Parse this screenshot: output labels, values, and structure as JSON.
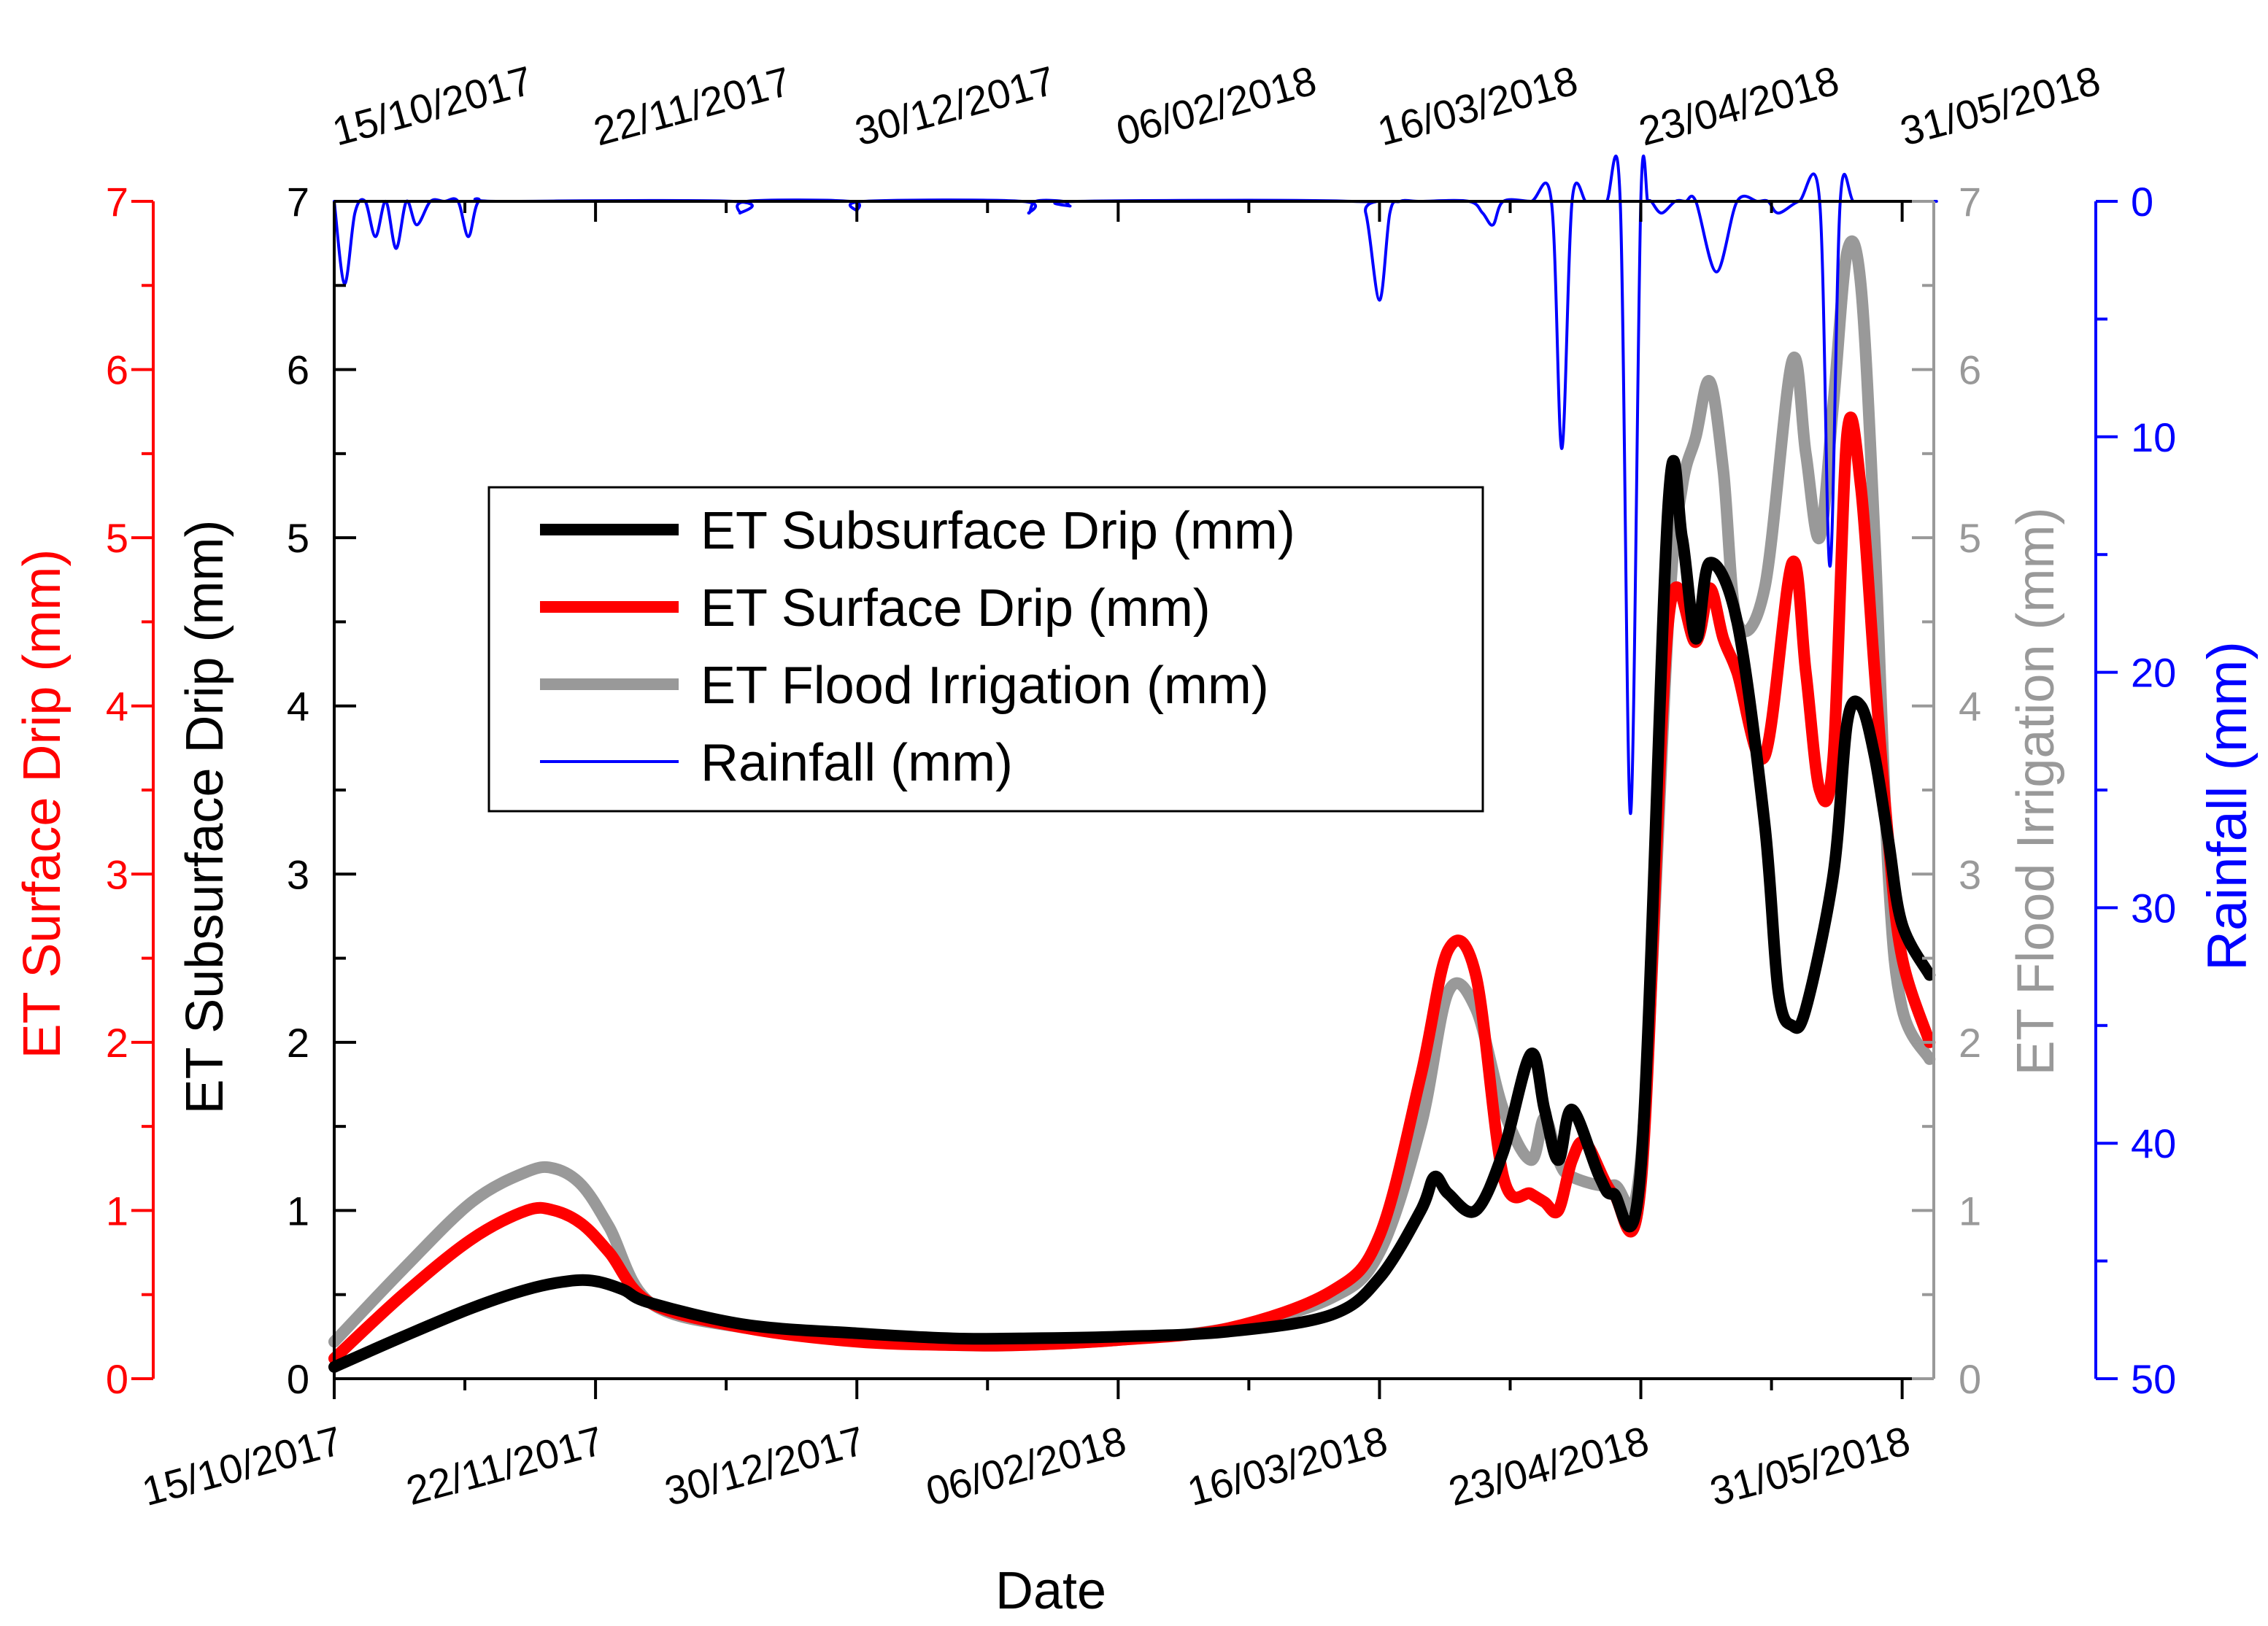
{
  "chart_data": {
    "type": "line",
    "xlabel": "Date",
    "x_tick_labels": [
      "15/10/2017",
      "22/11/2017",
      "30/12/2017",
      "06/02/2018",
      "16/03/2018",
      "23/04/2018",
      "31/05/2018"
    ],
    "x_tick_days": [
      0,
      38,
      76,
      114,
      152,
      190,
      228
    ],
    "x_range_days": [
      0,
      233
    ],
    "y_ticks_0_7": [
      "0",
      "1",
      "2",
      "3",
      "4",
      "5",
      "6",
      "7"
    ],
    "rain_ticks": [
      "0",
      "10",
      "20",
      "30",
      "40",
      "50"
    ],
    "axes": {
      "surface_drip": {
        "label": "ET Surface Drip (mm)",
        "range": [
          0,
          7
        ],
        "side": "left-outer",
        "color": "#ff0000"
      },
      "subsurface_drip": {
        "label": "ET Subsurface Drip (mm)",
        "range": [
          0,
          7
        ],
        "side": "left-inner",
        "color": "#000000"
      },
      "flood_irrigation": {
        "label": "ET Flood Irrigation (mm)",
        "range": [
          0,
          7
        ],
        "side": "right-inner",
        "color": "#999999"
      },
      "rainfall": {
        "label": "Rainfall (mm)",
        "range": [
          0,
          50
        ],
        "side": "right-outer",
        "inverted": true,
        "color": "#0000ff"
      }
    },
    "legend": {
      "placement": "upper-left",
      "entries": [
        {
          "label": "ET Subsurface Drip (mm)",
          "color": "#000000",
          "width": "thick"
        },
        {
          "label": "ET Surface Drip (mm)",
          "color": "#ff0000",
          "width": "thick"
        },
        {
          "label": "ET Flood Irrigation (mm)",
          "color": "#999999",
          "width": "thick"
        },
        {
          "label": "Rainfall (mm)",
          "color": "#0000ff",
          "width": "thin"
        }
      ]
    },
    "series": [
      {
        "name": "ET Flood Irrigation (mm)",
        "color": "#999999",
        "x": [
          0,
          10,
          20,
          28,
          32,
          36,
          40,
          46,
          60,
          76,
          90,
          100,
          114,
          130,
          145,
          152,
          158,
          162,
          166,
          170,
          174,
          176,
          178,
          180,
          186,
          190,
          194,
          196,
          198,
          200,
          202,
          204,
          208,
          212,
          214,
          216,
          218,
          220,
          222,
          224,
          226,
          228,
          232
        ],
        "y": [
          0.22,
          0.65,
          1.05,
          1.23,
          1.25,
          1.15,
          0.9,
          0.45,
          0.3,
          0.23,
          0.2,
          0.2,
          0.23,
          0.3,
          0.48,
          0.75,
          1.5,
          2.3,
          2.2,
          1.6,
          1.3,
          1.55,
          1.3,
          1.2,
          1.15,
          1.3,
          4.5,
          5.3,
          5.6,
          5.93,
          5.4,
          4.5,
          4.7,
          6.05,
          5.5,
          5.0,
          5.8,
          6.7,
          6.5,
          5.0,
          3.0,
          2.2,
          1.9
        ]
      },
      {
        "name": "ET Surface Drip (mm)",
        "color": "#ff0000",
        "x": [
          0,
          10,
          20,
          28,
          32,
          36,
          40,
          46,
          60,
          76,
          90,
          100,
          114,
          130,
          145,
          152,
          158,
          162,
          166,
          170,
          174,
          176,
          178,
          180,
          182,
          186,
          190,
          194,
          198,
          200,
          202,
          204,
          208,
          212,
          214,
          216,
          218,
          220,
          222,
          224,
          226,
          228,
          232
        ],
        "y": [
          0.12,
          0.5,
          0.83,
          1.0,
          1.0,
          0.92,
          0.75,
          0.45,
          0.3,
          0.22,
          0.2,
          0.2,
          0.23,
          0.3,
          0.52,
          0.85,
          1.8,
          2.55,
          2.4,
          1.2,
          1.1,
          1.05,
          1.0,
          1.3,
          1.4,
          1.1,
          1.15,
          4.5,
          4.38,
          4.7,
          4.4,
          4.2,
          3.7,
          4.85,
          4.2,
          3.5,
          3.7,
          5.62,
          5.3,
          4.2,
          3.2,
          2.5,
          2.0
        ]
      },
      {
        "name": "ET Subsurface Drip (mm)",
        "color": "#000000",
        "x": [
          0,
          10,
          20,
          28,
          34,
          38,
          42,
          46,
          60,
          76,
          90,
          100,
          114,
          130,
          145,
          152,
          158,
          160,
          162,
          166,
          170,
          174,
          176,
          178,
          180,
          184,
          186,
          190,
          194,
          196,
          198,
          200,
          204,
          208,
          210,
          212,
          214,
          218,
          220,
          222,
          224,
          226,
          228,
          232
        ],
        "y": [
          0.07,
          0.25,
          0.42,
          0.53,
          0.58,
          0.58,
          0.53,
          0.45,
          0.32,
          0.27,
          0.24,
          0.24,
          0.25,
          0.28,
          0.38,
          0.6,
          1.0,
          1.2,
          1.1,
          1.0,
          1.35,
          1.93,
          1.6,
          1.3,
          1.6,
          1.2,
          1.1,
          1.25,
          5.2,
          5.0,
          4.4,
          4.85,
          4.5,
          3.3,
          2.3,
          2.1,
          2.2,
          3.0,
          3.9,
          4.0,
          3.7,
          3.2,
          2.7,
          2.4
        ]
      },
      {
        "name": "Rainfall (mm)",
        "color": "#0000ff",
        "x": [
          0,
          1.5,
          3,
          4.5,
          6,
          7.5,
          9,
          10.5,
          12,
          14,
          16,
          18,
          19.5,
          21,
          24,
          58,
          59,
          60,
          75,
          76,
          77,
          100,
          101,
          102,
          106,
          107,
          108,
          148,
          150,
          152,
          153.5,
          155,
          158,
          165,
          167,
          168.5,
          170,
          174,
          177,
          178.5,
          180,
          182,
          183,
          185,
          187,
          188.5,
          190,
          191,
          191.5,
          193,
          195,
          196.5,
          198,
          201,
          204,
          207,
          208.5,
          210,
          213,
          216,
          217.5,
          219,
          221,
          224,
          229,
          233
        ],
        "y": [
          0,
          3.5,
          0.5,
          0,
          1.5,
          0,
          2.0,
          0,
          1.0,
          0,
          0,
          0,
          1.5,
          0,
          0,
          0,
          0.5,
          0,
          0,
          0.4,
          0,
          0,
          0.5,
          0,
          0,
          0.2,
          0,
          0,
          0.5,
          4.2,
          0.5,
          0,
          0,
          0,
          0.5,
          1.0,
          0,
          0,
          0,
          10.5,
          0,
          0,
          0,
          0,
          0,
          26.0,
          0,
          0,
          0,
          0.5,
          0,
          0,
          0,
          3.0,
          0,
          0,
          0,
          0.5,
          0,
          0,
          15.5,
          0,
          0,
          0,
          0,
          0
        ]
      }
    ]
  }
}
